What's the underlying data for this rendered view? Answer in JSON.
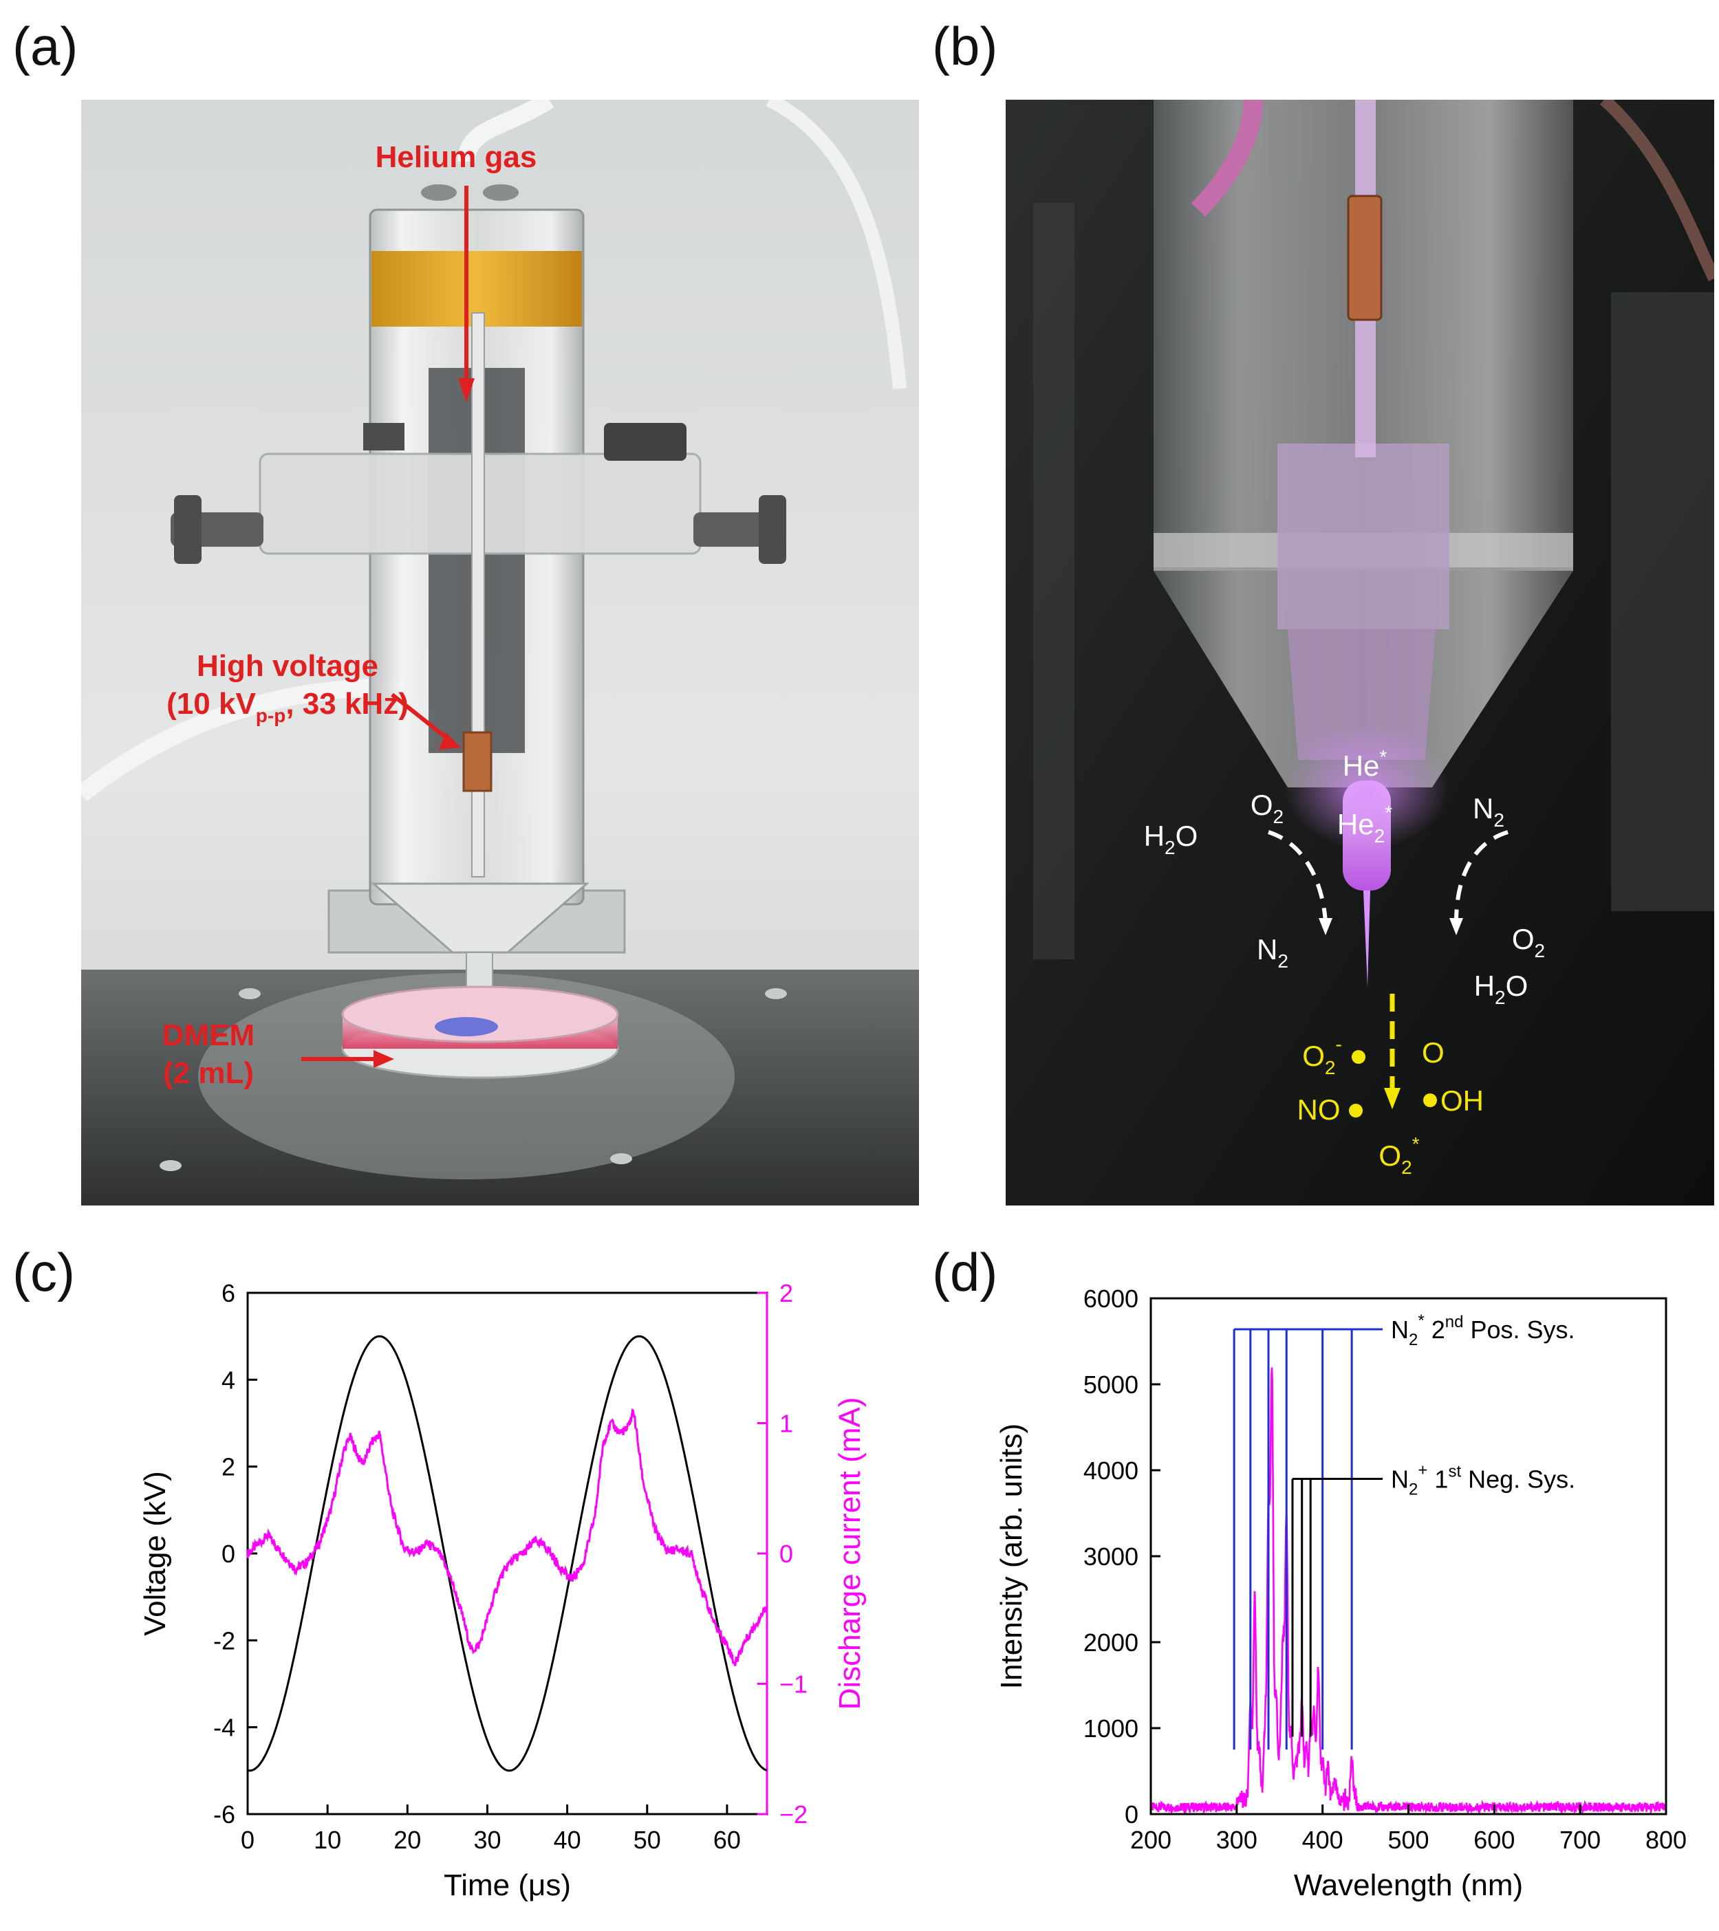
{
  "panels": {
    "a": {
      "label": "(a)",
      "annotations": {
        "helium": "Helium gas",
        "hv_line1": "High voltage",
        "hv_line2_pre": "(10 kV",
        "hv_line2_sub": "p-p",
        "hv_line2_post": ", 33 kHz)",
        "dmem_line1": "DMEM",
        "dmem_line2": "(2 mL)"
      },
      "colors": {
        "annotation": "#e02020",
        "tube_tint": "#e8b020"
      }
    },
    "b": {
      "label": "(b)",
      "species": {
        "he_star": "He",
        "he_star_sup": "*",
        "he2_star": "He",
        "he2_sub": "2",
        "he2_sup": "*",
        "h2o_left": "H",
        "h2o_left_sub": "2",
        "h2o_left_post": "O",
        "o2_left": "O",
        "o2_left_sub": "2",
        "n2_left": "N",
        "n2_left_sub": "2",
        "n2_right": "N",
        "n2_right_sub": "2",
        "o2_right": "O",
        "o2_right_sub": "2",
        "h2o_right": "H",
        "h2o_right_sub": "2",
        "h2o_right_post": "O",
        "o2minus": "O",
        "o2minus_sub": "2",
        "o2minus_sup": "-",
        "o_atom": "O",
        "no": "NO",
        "oh": "OH",
        "o2star": "O",
        "o2star_sub": "2",
        "o2star_sup": "*"
      },
      "colors": {
        "plasma": "#d27cf0",
        "ambient_text": "#ffffff",
        "rns_text": "#f5e600"
      }
    },
    "c": {
      "label": "(c)"
    },
    "d": {
      "label": "(d)"
    }
  },
  "chart_data": [
    {
      "panel": "c",
      "type": "line",
      "xlabel": "Time (μs)",
      "ylabel": "Voltage (kV)",
      "y2label": "Discharge current (mA)",
      "xlim": [
        0,
        65
      ],
      "ylim": [
        -6,
        6
      ],
      "y2lim": [
        -2,
        2
      ],
      "xticks": [
        0,
        10,
        20,
        30,
        40,
        50,
        60
      ],
      "yticks": [
        -6,
        -4,
        -2,
        0,
        2,
        4,
        6
      ],
      "y2ticks": [
        -2,
        -1,
        0,
        1,
        2
      ],
      "series": [
        {
          "axis": "left",
          "color": "#000000",
          "form": "sine",
          "amplitude_kV": 5,
          "period_us": 32.5,
          "first_peak_us": 16.5
        },
        {
          "axis": "right",
          "color": "#ff00ff",
          "x": [
            0,
            1.5,
            2.5,
            4,
            6,
            7.5,
            9,
            10.5,
            12,
            12.8,
            14,
            14.6,
            15.5,
            16.5,
            18,
            19.5,
            21,
            22.5,
            24,
            25.5,
            27,
            28,
            29,
            30,
            31.5,
            33,
            34.5,
            36,
            37.5,
            39,
            40.5,
            42,
            43.5,
            44.5,
            45.5,
            46.5,
            47.5,
            48.3,
            49.5,
            51,
            52.5,
            54,
            55.5,
            57,
            58.5,
            60,
            61,
            62,
            63.5,
            65
          ],
          "y": [
            0.0,
            0.08,
            0.14,
            0.02,
            -0.12,
            -0.06,
            0.08,
            0.35,
            0.78,
            0.9,
            0.72,
            0.7,
            0.85,
            0.92,
            0.35,
            0.05,
            0.0,
            0.08,
            0.0,
            -0.2,
            -0.5,
            -0.75,
            -0.7,
            -0.5,
            -0.2,
            -0.05,
            0.0,
            0.1,
            0.04,
            -0.1,
            -0.2,
            -0.08,
            0.3,
            0.85,
            1.0,
            0.93,
            0.95,
            1.1,
            0.55,
            0.18,
            0.02,
            0.03,
            0.0,
            -0.3,
            -0.55,
            -0.7,
            -0.85,
            -0.7,
            -0.55,
            -0.4
          ]
        }
      ]
    },
    {
      "panel": "d",
      "type": "line",
      "xlabel": "Wavelength (nm)",
      "ylabel": "Intensity (arb. units)",
      "xlim": [
        200,
        800
      ],
      "ylim": [
        0,
        6000
      ],
      "xticks": [
        200,
        300,
        400,
        500,
        600,
        700,
        800
      ],
      "yticks": [
        0,
        1000,
        2000,
        3000,
        4000,
        5000,
        6000
      ],
      "baseline": 80,
      "peaks": [
        {
          "x": 316,
          "y": 1200
        },
        {
          "x": 321,
          "y": 2450
        },
        {
          "x": 326,
          "y": 700
        },
        {
          "x": 333,
          "y": 900
        },
        {
          "x": 337,
          "y": 3350
        },
        {
          "x": 341,
          "y": 4950
        },
        {
          "x": 346,
          "y": 1300
        },
        {
          "x": 351,
          "y": 700
        },
        {
          "x": 354,
          "y": 1800
        },
        {
          "x": 358,
          "y": 3300
        },
        {
          "x": 363,
          "y": 900
        },
        {
          "x": 368,
          "y": 500
        },
        {
          "x": 372,
          "y": 650
        },
        {
          "x": 376,
          "y": 1150
        },
        {
          "x": 381,
          "y": 700
        },
        {
          "x": 386,
          "y": 900
        },
        {
          "x": 390,
          "y": 1050
        },
        {
          "x": 395,
          "y": 1600
        },
        {
          "x": 400,
          "y": 500
        },
        {
          "x": 406,
          "y": 450
        },
        {
          "x": 414,
          "y": 300
        },
        {
          "x": 434,
          "y": 500
        }
      ],
      "color": "#ff00ff",
      "band_markers": [
        {
          "label": "N",
          "label_sub": "2",
          "label_sup": "*",
          "label_post_pre": " 2",
          "label_post_sup": "nd",
          "label_post": " Pos. Sys.",
          "color": "#1f2fd0",
          "top_y": 5640,
          "bottom_y": 750,
          "lines_x": [
            297,
            316,
            337,
            358,
            400,
            434
          ],
          "end_x": 470
        },
        {
          "label": "N",
          "label_sub": "2",
          "label_sup": "+",
          "label_post_pre": " 1",
          "label_post_sup": "st",
          "label_post": " Neg. Sys.",
          "color": "#000000",
          "top_y": 3900,
          "bottom_y": 900,
          "lines_x": [
            365,
            376,
            386
          ],
          "end_x": 470
        }
      ]
    }
  ]
}
